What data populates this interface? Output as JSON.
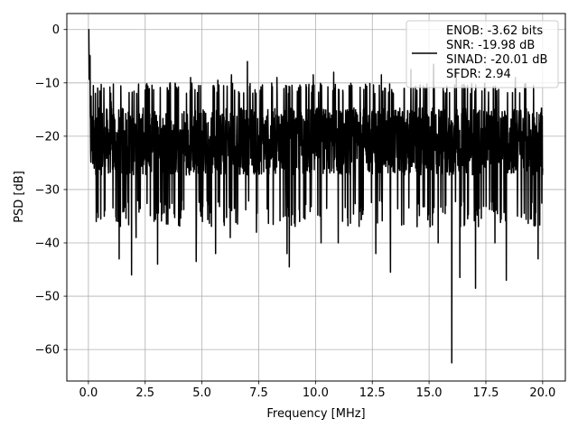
{
  "chart_data": {
    "type": "line",
    "title": "",
    "xlabel": "Frequency [MHz]",
    "ylabel": "PSD [dB]",
    "xlim": [
      -0.95,
      21.0
    ],
    "ylim": [
      -65.9,
      3.0
    ],
    "xticks": [
      0.0,
      2.5,
      5.0,
      7.5,
      10.0,
      12.5,
      15.0,
      17.5,
      20.0
    ],
    "xtick_labels": [
      "0.0",
      "2.5",
      "5.0",
      "7.5",
      "10.0",
      "12.5",
      "15.0",
      "17.5",
      "20.0"
    ],
    "yticks": [
      0,
      -10,
      -20,
      -30,
      -40,
      -50,
      -60
    ],
    "ytick_labels": [
      "0",
      "−10",
      "−20",
      "−30",
      "−40",
      "−50",
      "−60"
    ],
    "grid": true,
    "legend_position": "top-right",
    "series": [
      {
        "color": "#000000",
        "legend_lines": [
          "ENOB: -3.62 bits",
          "SNR: -19.98 dB",
          "SINAD: -20.01 dB",
          "SFDR: 2.94"
        ],
        "x_range": [
          0.0,
          20.0
        ],
        "baseline_level": -22.0,
        "noise_band": [
          -30,
          -12
        ],
        "peaks": [
          {
            "x": 0.0,
            "y": 0.0
          },
          {
            "x": 0.05,
            "y": -7.0
          },
          {
            "x": 0.12,
            "y": -12.5
          }
        ],
        "spikes_up": [
          {
            "x": 1.0,
            "y": -13.5
          },
          {
            "x": 2.2,
            "y": -12.0
          },
          {
            "x": 3.6,
            "y": -10.0
          },
          {
            "x": 4.5,
            "y": -9.0
          },
          {
            "x": 5.7,
            "y": -9.5
          },
          {
            "x": 6.3,
            "y": -8.5
          },
          {
            "x": 7.0,
            "y": -6.0
          },
          {
            "x": 8.3,
            "y": -9.0
          },
          {
            "x": 9.9,
            "y": -8.5
          },
          {
            "x": 10.8,
            "y": -8.0
          },
          {
            "x": 12.9,
            "y": -8.5
          },
          {
            "x": 14.2,
            "y": -7.5
          },
          {
            "x": 15.2,
            "y": -6.5
          },
          {
            "x": 16.2,
            "y": -7.5
          },
          {
            "x": 18.8,
            "y": -9.0
          },
          {
            "x": 19.6,
            "y": -10.5
          }
        ],
        "spikes_down": [
          {
            "x": 0.25,
            "y": -26.0
          },
          {
            "x": 0.35,
            "y": -36.0
          },
          {
            "x": 0.7,
            "y": -35.0
          },
          {
            "x": 1.35,
            "y": -43.0
          },
          {
            "x": 1.9,
            "y": -46.0
          },
          {
            "x": 2.1,
            "y": -39.0
          },
          {
            "x": 3.05,
            "y": -44.0
          },
          {
            "x": 4.75,
            "y": -43.5
          },
          {
            "x": 5.6,
            "y": -42.0
          },
          {
            "x": 6.25,
            "y": -39.0
          },
          {
            "x": 7.4,
            "y": -38.0
          },
          {
            "x": 8.75,
            "y": -42.0
          },
          {
            "x": 8.85,
            "y": -44.5
          },
          {
            "x": 10.25,
            "y": -40.0
          },
          {
            "x": 11.0,
            "y": -40.0
          },
          {
            "x": 12.65,
            "y": -42.0
          },
          {
            "x": 13.3,
            "y": -45.5
          },
          {
            "x": 15.4,
            "y": -40.0
          },
          {
            "x": 16.0,
            "y": -62.5
          },
          {
            "x": 16.35,
            "y": -46.5
          },
          {
            "x": 17.05,
            "y": -48.5
          },
          {
            "x": 17.9,
            "y": -40.0
          },
          {
            "x": 18.4,
            "y": -47.0
          },
          {
            "x": 19.8,
            "y": -43.0
          }
        ]
      }
    ]
  }
}
